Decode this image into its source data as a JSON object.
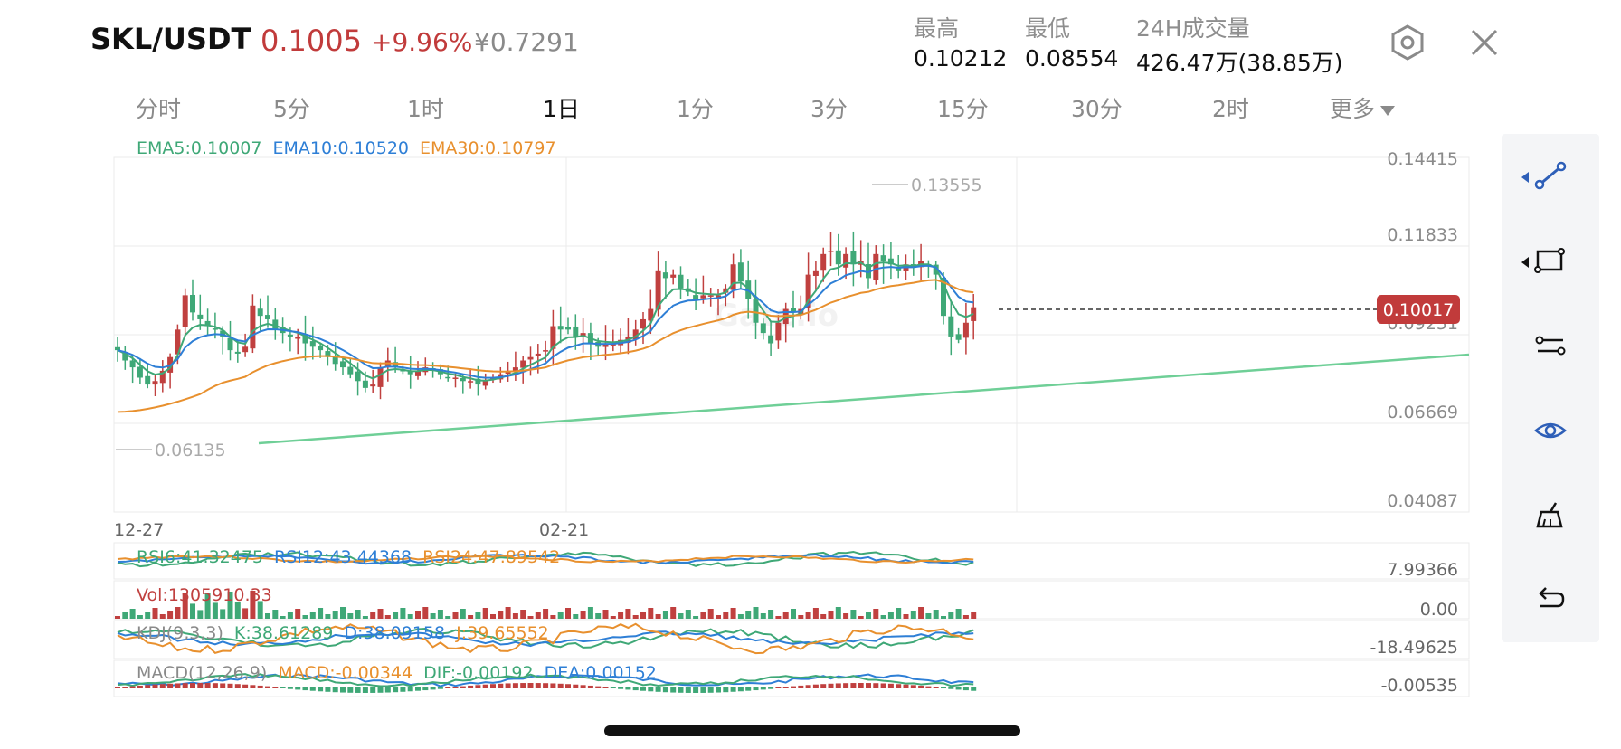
{
  "header": {
    "pair": "SKL/USDT",
    "price": "0.1005",
    "change": "+9.96%",
    "cny": "¥0.7291",
    "stats": [
      {
        "label": "最高",
        "value": "0.10212"
      },
      {
        "label": "最低",
        "value": "0.08554"
      },
      {
        "label": "24H成交量",
        "value": "426.47万(38.85万)"
      }
    ],
    "icons": [
      "settings-icon",
      "close-icon"
    ]
  },
  "intervals": [
    {
      "label": "分时"
    },
    {
      "label": "5分"
    },
    {
      "label": "1时"
    },
    {
      "label": "1日",
      "active": true
    },
    {
      "label": "1分"
    },
    {
      "label": "3分"
    },
    {
      "label": "15分"
    },
    {
      "label": "30分"
    },
    {
      "label": "2时"
    },
    {
      "label": "更多"
    }
  ],
  "colors": {
    "up": "#c0403f",
    "down": "#3fa877",
    "ema5": "#3fa877",
    "ema10": "#2e7fd6",
    "ema30": "#e8902e",
    "trendline": "#6fcf97",
    "price_tag_bg": "#c13b3b",
    "grid": "#ebebeb",
    "axis_text": "#8a8a8a"
  },
  "indicators": {
    "ema": [
      {
        "text": "EMA5:0.10007",
        "color": "#3fa877"
      },
      {
        "text": "EMA10:0.10520",
        "color": "#2e7fd6"
      },
      {
        "text": "EMA30:0.10797",
        "color": "#e8902e"
      }
    ],
    "rsi": [
      {
        "text": "RSI6:41.32475",
        "color": "#3fa877"
      },
      {
        "text": "RSI12:43.44368",
        "color": "#2e7fd6"
      },
      {
        "text": "RSI24:47.89542",
        "color": "#e8902e"
      }
    ],
    "vol": [
      {
        "text": "Vol:1305910.33",
        "color": "#c0403f"
      }
    ],
    "kdj": [
      {
        "text": "KDJ(9,3,3)",
        "color": "#8a8a8a"
      },
      {
        "text": "K:38.61289",
        "color": "#3fa877"
      },
      {
        "text": "D:38.09158",
        "color": "#2e7fd6"
      },
      {
        "text": "J:39.65552",
        "color": "#e8902e"
      }
    ],
    "macd": [
      {
        "text": "MACD(12,26,9)",
        "color": "#8a8a8a"
      },
      {
        "text": "MACD:-0.00344",
        "color": "#e8902e"
      },
      {
        "text": "DIF:-0.00192",
        "color": "#3fa877"
      },
      {
        "text": "DEA:0.00152",
        "color": "#2e7fd6"
      }
    ]
  },
  "chart_data": {
    "type": "candlestick",
    "price_axis_labels": [
      "0.14415",
      "0.11833",
      "0.09251",
      "0.06669",
      "0.04087"
    ],
    "price_axis_values": [
      0.14415,
      0.11833,
      0.09251,
      0.06669,
      0.04087
    ],
    "ylim": [
      0.04087,
      0.14415
    ],
    "date_labels": [
      "12-27",
      "02-21"
    ],
    "max_label": "0.13555",
    "min_label": "0.06135",
    "current_price": "0.10017",
    "watermark": "Gate.io",
    "sub_axis_labels": {
      "rsi": "7.99366",
      "vol": "0.00",
      "kdj": "-18.49625",
      "macd": "-0.00535"
    },
    "close_series": [
      0.088,
      0.085,
      0.083,
      0.08,
      0.078,
      0.079,
      0.082,
      0.086,
      0.094,
      0.104,
      0.099,
      0.097,
      0.095,
      0.094,
      0.092,
      0.088,
      0.087,
      0.089,
      0.101,
      0.098,
      0.097,
      0.094,
      0.093,
      0.092,
      0.092,
      0.09,
      0.089,
      0.088,
      0.086,
      0.084,
      0.083,
      0.081,
      0.079,
      0.077,
      0.078,
      0.083,
      0.085,
      0.083,
      0.082,
      0.081,
      0.082,
      0.083,
      0.082,
      0.081,
      0.08,
      0.08,
      0.079,
      0.079,
      0.078,
      0.079,
      0.08,
      0.081,
      0.082,
      0.083,
      0.085,
      0.086,
      0.087,
      0.088,
      0.095,
      0.094,
      0.094,
      0.092,
      0.093,
      0.09,
      0.089,
      0.09,
      0.09,
      0.091,
      0.092,
      0.094,
      0.097,
      0.1,
      0.111,
      0.109,
      0.11,
      0.106,
      0.105,
      0.103,
      0.104,
      0.104,
      0.104,
      0.106,
      0.113,
      0.108,
      0.103,
      0.096,
      0.093,
      0.09,
      0.096,
      0.1,
      0.099,
      0.1,
      0.11,
      0.111,
      0.116,
      0.117,
      0.113,
      0.116,
      0.113,
      0.114,
      0.109,
      0.116,
      0.114,
      0.113,
      0.111,
      0.113,
      0.112,
      0.114,
      0.113,
      0.11,
      0.098,
      0.092,
      0.091,
      0.096,
      0.1005
    ]
  }
}
